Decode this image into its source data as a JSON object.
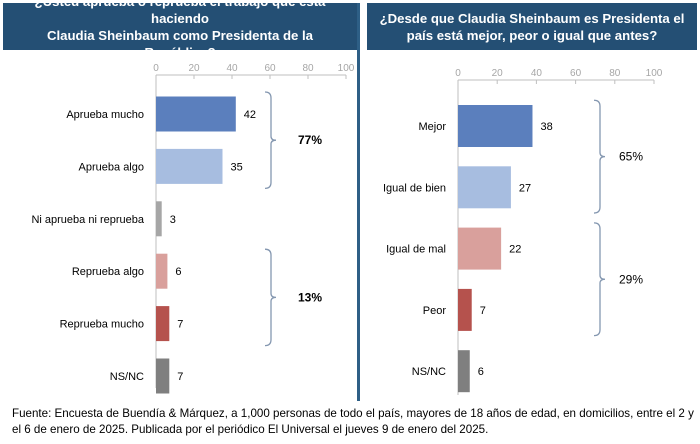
{
  "chart_data": [
    {
      "type": "bar",
      "orientation": "horizontal",
      "title": "¿Usted aprueba o reprueba el trabajo que está haciendo Claudia Sheinbaum como Presidenta de la República?",
      "categories": [
        "Aprueba mucho",
        "Aprueba algo",
        "Ni aprueba ni reprueba",
        "Reprueba algo",
        "Reprueba mucho",
        "NS/NC"
      ],
      "values": [
        42,
        35,
        3,
        6,
        7,
        7
      ],
      "colors": [
        "#5b7fbd",
        "#a7bde0",
        "#a6a6a6",
        "#d9a09c",
        "#b5524d",
        "#7f7f7f"
      ],
      "xlim": [
        0,
        100
      ],
      "ticks": [
        0,
        20,
        40,
        60,
        80,
        100
      ],
      "grid": false,
      "groups": [
        {
          "label": "77%",
          "start": 0,
          "end": 1,
          "bold": true
        },
        {
          "label": "13%",
          "start": 3,
          "end": 4,
          "bold": true
        }
      ]
    },
    {
      "type": "bar",
      "orientation": "horizontal",
      "title": "¿Desde que Claudia Sheinbaum es Presidenta el país está mejor, peor o igual que antes?",
      "categories": [
        "Mejor",
        "Igual de bien",
        "Igual de mal",
        "Peor",
        "NS/NC"
      ],
      "values": [
        38,
        27,
        22,
        7,
        6
      ],
      "colors": [
        "#5b7fbd",
        "#a7bde0",
        "#d9a09c",
        "#b5524d",
        "#7f7f7f"
      ],
      "xlim": [
        0,
        100
      ],
      "ticks": [
        0,
        20,
        40,
        60,
        80,
        100
      ],
      "grid": false,
      "groups": [
        {
          "label": "65%",
          "start": 0,
          "end": 1,
          "bold": false
        },
        {
          "label": "29%",
          "start": 2,
          "end": 3,
          "bold": false
        }
      ]
    }
  ],
  "headers": {
    "left_line1": "¿Usted aprueba o reprueba el trabajo que está haciendo",
    "left_line2": "Claudia Sheinbaum como Presidenta de la República?",
    "right_line1": "¿Desde que Claudia Sheinbaum es Presidenta el",
    "right_line2": "país está mejor, peor o igual que antes?"
  },
  "footnote": "Fuente: Encuesta de Buendía & Márquez, a 1,000 personas de todo el país, mayores de 18 años de edad, en domicilios, entre el 2 y el 6 de enero de 2025. Publicada por el periódico El Universal el jueves 9 de enero del 2025.",
  "colors": {
    "header_bg": "#244f74",
    "panel_divider": "#2e5f86",
    "bracket": "#8497b0",
    "axis": "#bfbfbf"
  }
}
